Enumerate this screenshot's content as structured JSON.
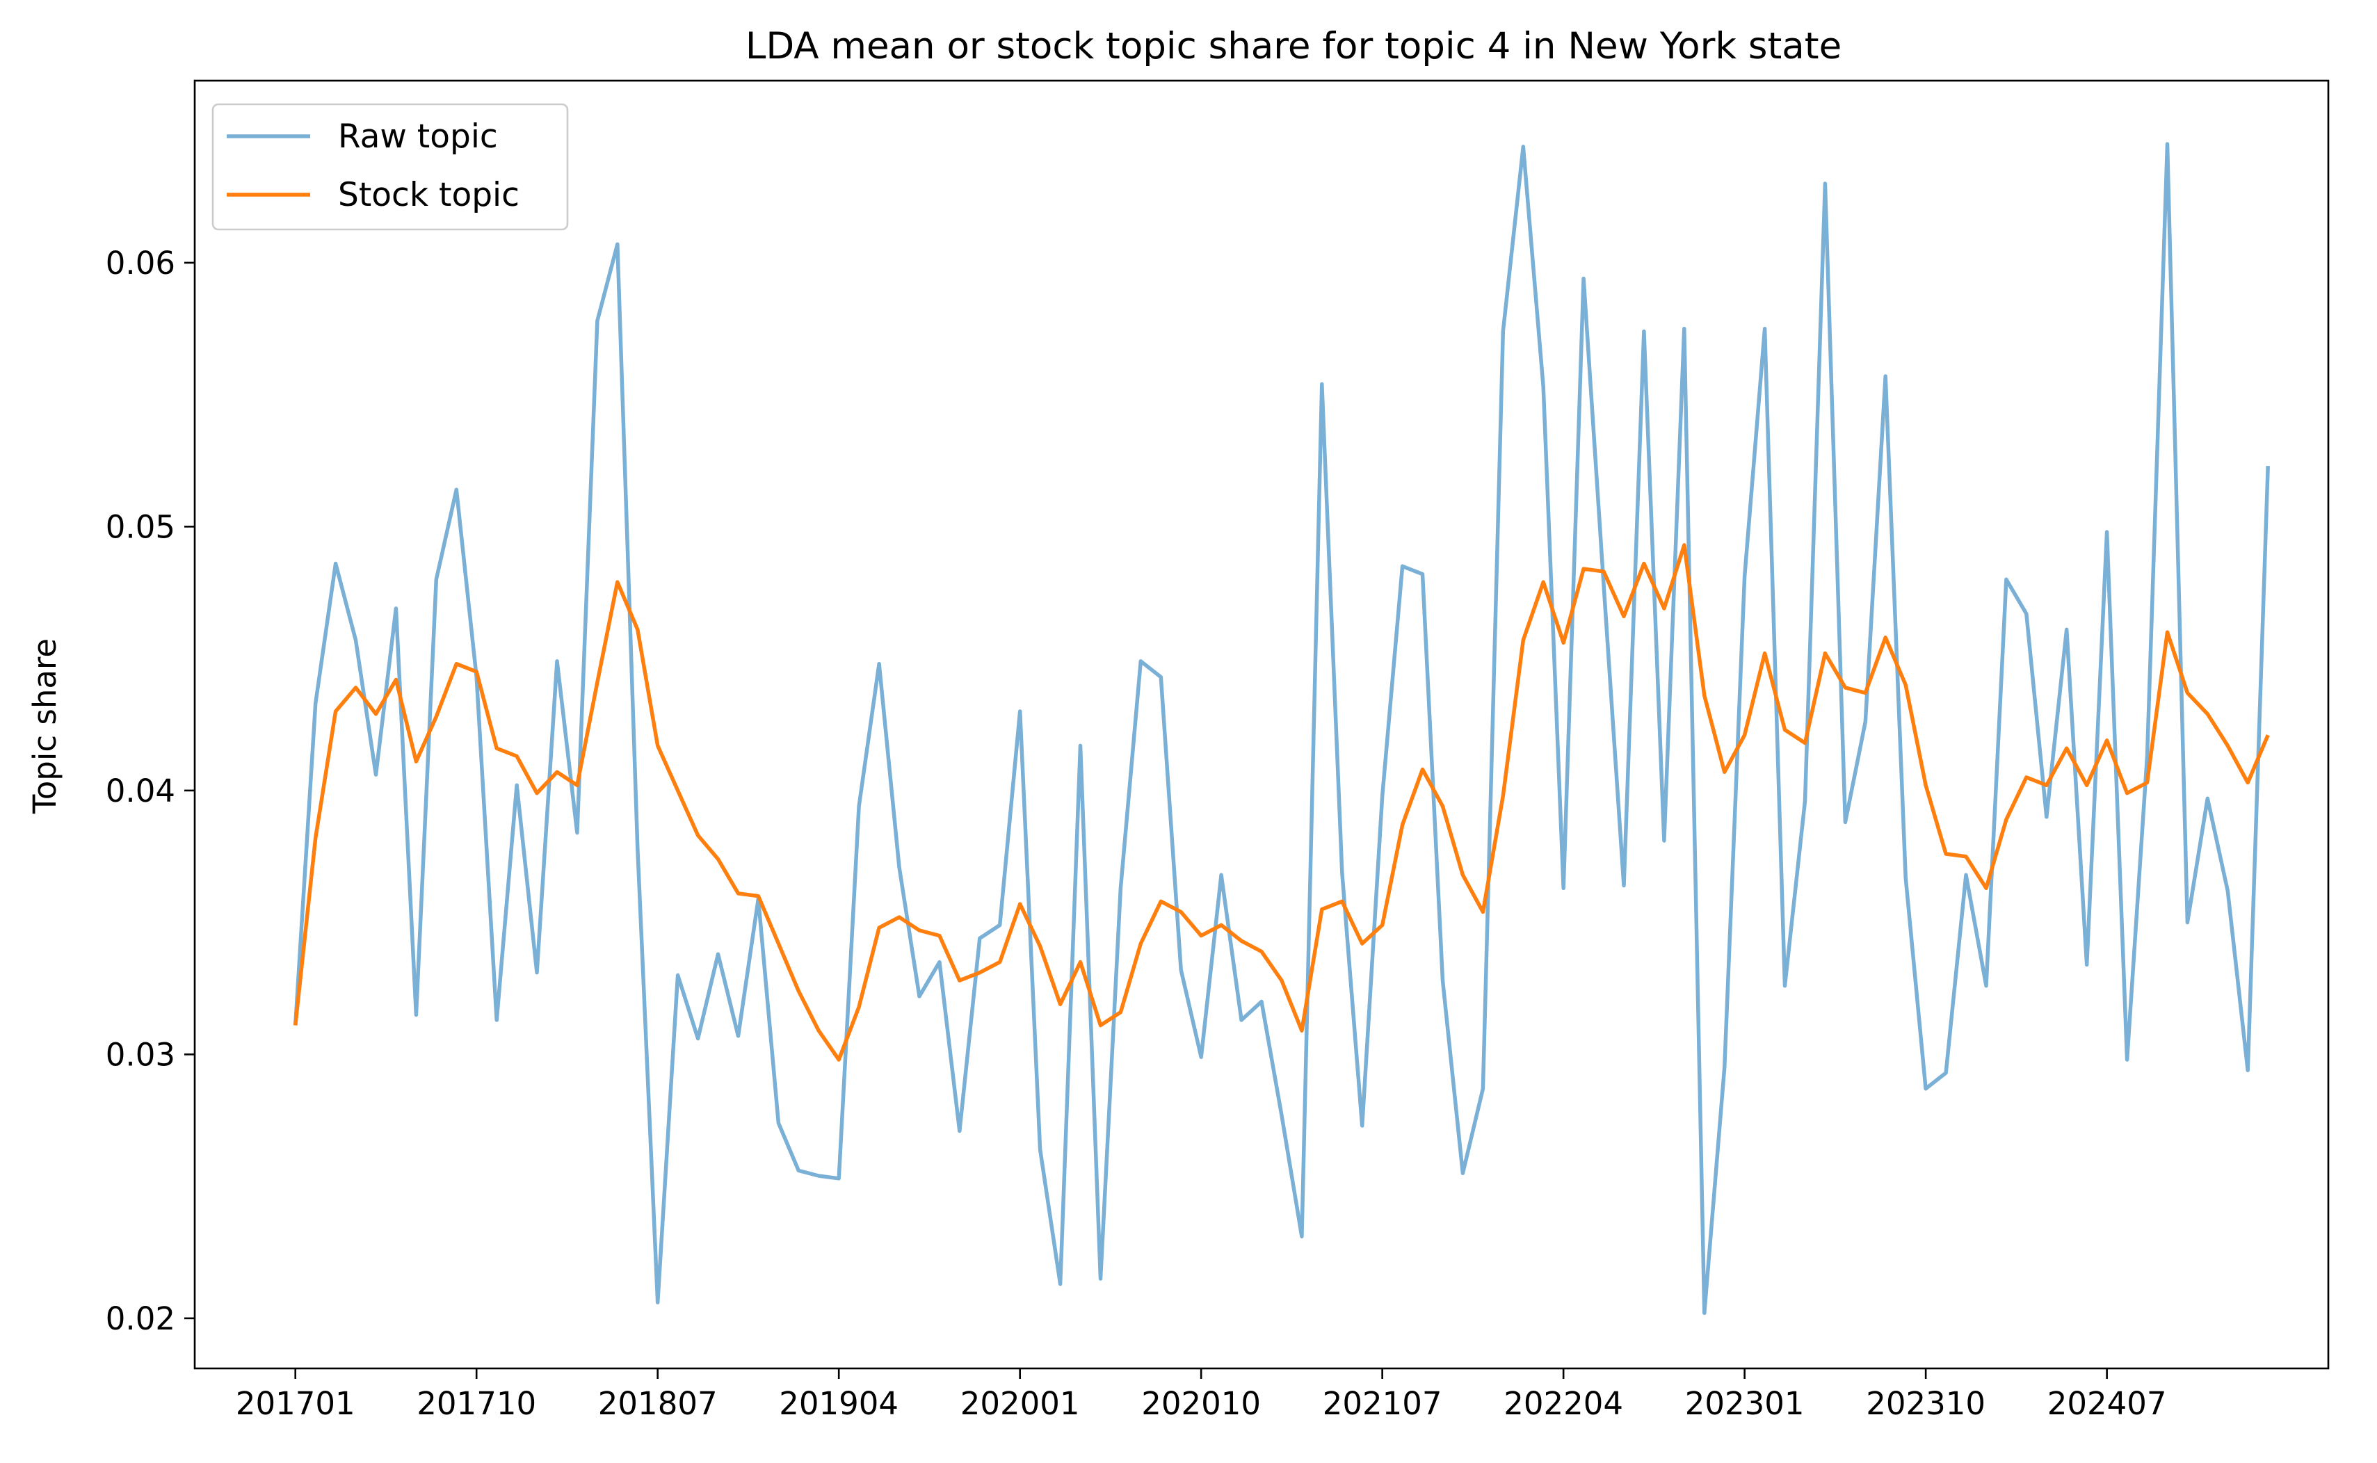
{
  "chart_data": {
    "type": "line",
    "title": "LDA mean or stock topic share for topic 4 in New York state",
    "xlabel": "",
    "ylabel": "Topic share",
    "x_tick_labels": [
      "201701",
      "201710",
      "201807",
      "201904",
      "202001",
      "202010",
      "202107",
      "202204",
      "202301",
      "202310",
      "202407"
    ],
    "x_tick_month_index": [
      0,
      9,
      18,
      27,
      36,
      45,
      54,
      63,
      72,
      81,
      90
    ],
    "y_ticks": [
      0.02,
      0.03,
      0.04,
      0.05,
      0.06
    ],
    "y_tick_labels": [
      "0.02",
      "0.03",
      "0.04",
      "0.05",
      "0.06"
    ],
    "xlim": [
      -5,
      101
    ],
    "ylim": [
      0.0181,
      0.0669
    ],
    "grid": false,
    "legend_position": "top-left",
    "series": [
      {
        "name": "Raw topic",
        "color": "#7aafd6",
        "values": [
          0.0311,
          0.0433,
          0.0486,
          0.0457,
          0.0406,
          0.0469,
          0.0315,
          0.048,
          0.0514,
          0.0443,
          0.0313,
          0.0402,
          0.0331,
          0.0449,
          0.0384,
          0.0578,
          0.0607,
          0.0378,
          0.0206,
          0.033,
          0.0306,
          0.0338,
          0.0307,
          0.0359,
          0.0274,
          0.0256,
          0.0254,
          0.0253,
          0.0394,
          0.0448,
          0.0371,
          0.0322,
          0.0335,
          0.0271,
          0.0344,
          0.0349,
          0.043,
          0.0264,
          0.0213,
          0.0417,
          0.0215,
          0.0363,
          0.0449,
          0.0443,
          0.0332,
          0.0299,
          0.0368,
          0.0313,
          0.032,
          0.0277,
          0.0231,
          0.0554,
          0.0369,
          0.0273,
          0.0398,
          0.0485,
          0.0482,
          0.0328,
          0.0255,
          0.0287,
          0.0574,
          0.0644,
          0.0553,
          0.0363,
          0.0594,
          0.0478,
          0.0364,
          0.0574,
          0.0381,
          0.0575,
          0.0202,
          0.0295,
          0.0481,
          0.0575,
          0.0326,
          0.0396,
          0.063,
          0.0388,
          0.0426,
          0.0557,
          0.0367,
          0.0287,
          0.0293,
          0.0368,
          0.0326,
          0.048,
          0.0467,
          0.039,
          0.0461,
          0.0334,
          0.0498,
          0.0298,
          0.0413,
          0.0645,
          0.035,
          0.0397,
          0.0362,
          0.0294,
          0.0523
        ]
      },
      {
        "name": "Stock topic",
        "color": "#ff7f0e",
        "values": [
          0.0311,
          0.0382,
          0.043,
          0.0439,
          0.0429,
          0.0442,
          0.0411,
          0.0428,
          0.0448,
          0.0445,
          0.0416,
          0.0413,
          0.0399,
          0.0407,
          0.0402,
          0.0441,
          0.0479,
          0.0461,
          0.0417,
          0.04,
          0.0383,
          0.0374,
          0.0361,
          0.036,
          0.0342,
          0.0324,
          0.0309,
          0.0298,
          0.0318,
          0.0348,
          0.0352,
          0.0347,
          0.0345,
          0.0328,
          0.0331,
          0.0335,
          0.0357,
          0.0341,
          0.0319,
          0.0335,
          0.0311,
          0.0316,
          0.0342,
          0.0358,
          0.0354,
          0.0345,
          0.0349,
          0.0343,
          0.0339,
          0.0328,
          0.0309,
          0.0355,
          0.0358,
          0.0342,
          0.0349,
          0.0387,
          0.0408,
          0.0394,
          0.0368,
          0.0354,
          0.0398,
          0.0457,
          0.0479,
          0.0456,
          0.0484,
          0.0483,
          0.0466,
          0.0486,
          0.0469,
          0.0493,
          0.0436,
          0.0407,
          0.0421,
          0.0452,
          0.0423,
          0.0418,
          0.0452,
          0.0439,
          0.0437,
          0.0458,
          0.044,
          0.0402,
          0.0376,
          0.0375,
          0.0363,
          0.0389,
          0.0405,
          0.0402,
          0.0416,
          0.0402,
          0.0419,
          0.0399,
          0.0403,
          0.046,
          0.0437,
          0.0429,
          0.0417,
          0.0403,
          0.0421
        ]
      }
    ]
  }
}
